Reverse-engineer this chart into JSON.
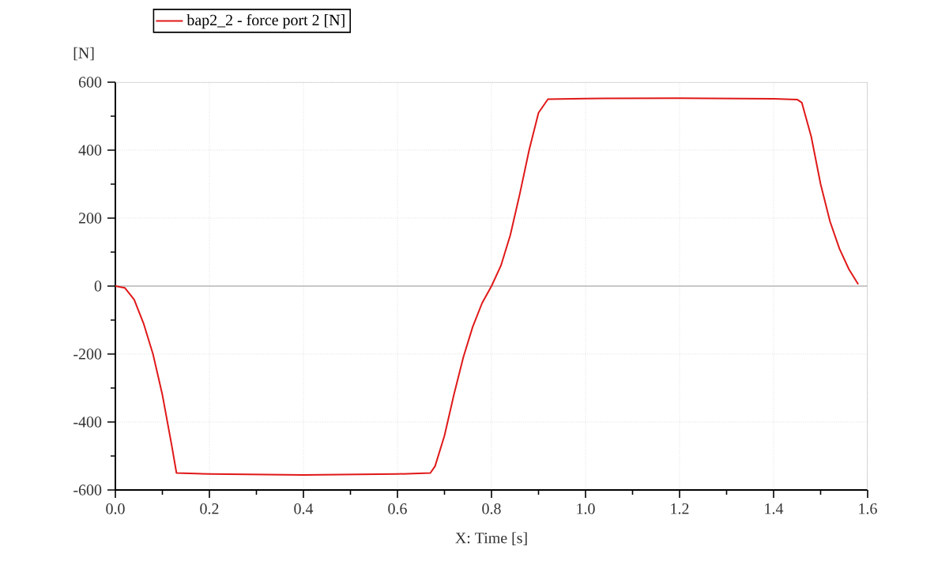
{
  "chart_data": {
    "type": "line",
    "xlabel": "X: Time [s]",
    "ylabel": "[N]",
    "x": [
      0,
      0.02,
      0.04,
      0.06,
      0.08,
      0.1,
      0.12,
      0.13,
      0.2,
      0.4,
      0.6,
      0.67,
      0.68,
      0.7,
      0.72,
      0.74,
      0.76,
      0.78,
      0.8,
      0.82,
      0.84,
      0.86,
      0.88,
      0.9,
      0.92,
      1.0,
      1.2,
      1.4,
      1.45,
      1.46,
      1.48,
      1.5,
      1.52,
      1.54,
      1.56,
      1.58
    ],
    "series": [
      {
        "name": "bap2_2 - force port 2 [N]",
        "color": "#e01818",
        "values": [
          0,
          -5,
          -40,
          -110,
          -200,
          -320,
          -470,
          -550,
          -553,
          -556,
          -553,
          -550,
          -530,
          -440,
          -320,
          -210,
          -120,
          -50,
          0,
          60,
          150,
          270,
          400,
          510,
          550,
          552,
          553,
          551,
          549,
          540,
          440,
          300,
          190,
          110,
          50,
          5
        ]
      }
    ],
    "xlim": [
      0,
      1.6
    ],
    "ylim": [
      -600,
      600
    ],
    "xticks": [
      {
        "value": 0,
        "label": "0.0"
      },
      0.2,
      0.4,
      0.6,
      0.8,
      {
        "value": 1,
        "label": "1.0"
      },
      1.2,
      1.4,
      1.6
    ],
    "yticks": [
      -600,
      -400,
      -200,
      0,
      200,
      400,
      600
    ],
    "ref_lines": [
      {
        "axis": "y",
        "value": 0,
        "color": "#c8c8c8"
      }
    ],
    "grid": true,
    "legend": "top",
    "line_style": "solid",
    "marker": "none"
  }
}
